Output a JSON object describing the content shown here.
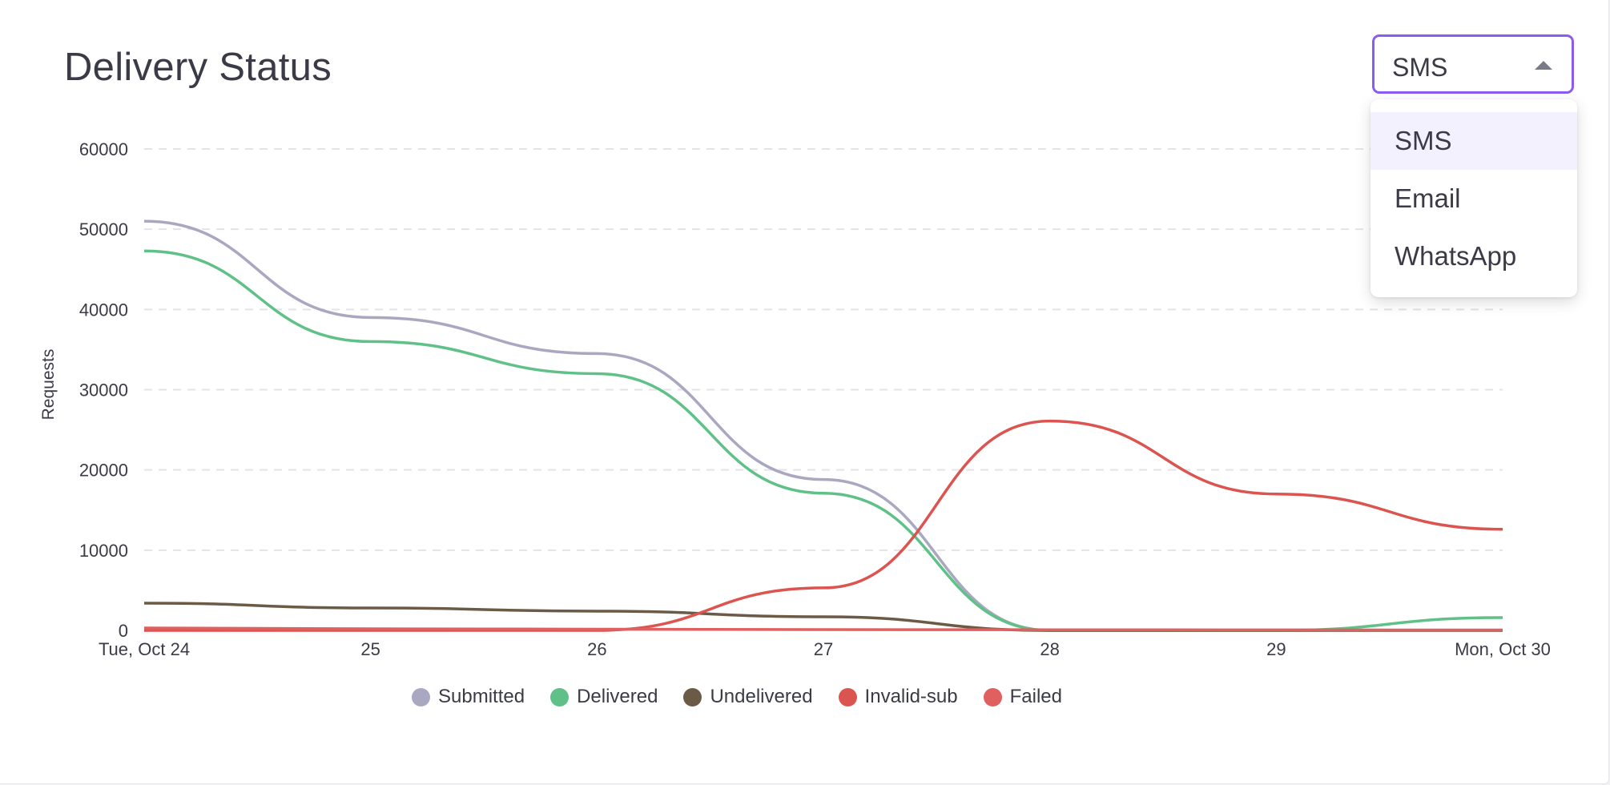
{
  "header": {
    "title": "Delivery Status"
  },
  "channel_select": {
    "value": "SMS",
    "options": [
      "SMS",
      "Email",
      "WhatsApp"
    ],
    "accent": "#8b5cf0"
  },
  "chart_data": {
    "type": "line",
    "title": "Delivery Status",
    "xlabel": "",
    "ylabel": "Requests",
    "x": [
      "Tue, Oct 24",
      "25",
      "26",
      "27",
      "28",
      "29",
      "Mon, Oct 30"
    ],
    "yticks": [
      "0",
      "10000",
      "20000",
      "30000",
      "40000",
      "50000",
      "60000"
    ],
    "ylim": [
      0,
      60000
    ],
    "grid": true,
    "legend_position": "bottom",
    "series": [
      {
        "name": "Submitted",
        "color": "#aaa8c1",
        "values": [
          51000,
          39000,
          34500,
          18800,
          0,
          0,
          0
        ]
      },
      {
        "name": "Delivered",
        "color": "#5fc187",
        "values": [
          47300,
          36000,
          32000,
          17100,
          0,
          0,
          1600
        ]
      },
      {
        "name": "Undelivered",
        "color": "#6b5a45",
        "values": [
          3400,
          2800,
          2400,
          1700,
          0,
          0,
          0
        ]
      },
      {
        "name": "Invalid-sub",
        "color": "#dc5450",
        "values": [
          0,
          0,
          0,
          5300,
          26100,
          17000,
          12600
        ]
      },
      {
        "name": "Failed",
        "color": "#e06060",
        "values": [
          300,
          200,
          150,
          100,
          80,
          60,
          50
        ]
      }
    ]
  }
}
